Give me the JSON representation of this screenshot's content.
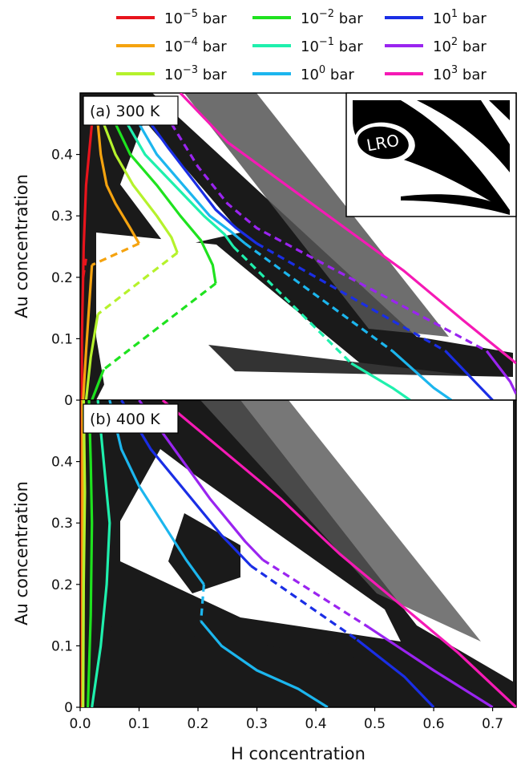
{
  "chart_data": {
    "type": "line",
    "xlabel": "H concentration",
    "ylabel": "Au concentration",
    "xlim": [
      0.0,
      0.74
    ],
    "ylim": [
      0.0,
      0.5
    ],
    "x_ticks": [
      "0.0",
      "0.1",
      "0.2",
      "0.3",
      "0.4",
      "0.5",
      "0.6",
      "0.7"
    ],
    "y_ticks": [
      "0",
      "0.1",
      "0.2",
      "0.3",
      "0.4"
    ],
    "legend": [
      {
        "base": "10",
        "exp": "−5",
        "unit": " bar",
        "color": "#e8141c"
      },
      {
        "base": "10",
        "exp": "−4",
        "unit": " bar",
        "color": "#f5a30f"
      },
      {
        "base": "10",
        "exp": "−3",
        "unit": " bar",
        "color": "#b5f22c"
      },
      {
        "base": "10",
        "exp": "−2",
        "unit": " bar",
        "color": "#1fe21f"
      },
      {
        "base": "10",
        "exp": "−1",
        "unit": " bar",
        "color": "#1ff0ad"
      },
      {
        "base": "10",
        "exp": "0",
        "unit": " bar",
        "color": "#1cb6ee"
      },
      {
        "base": "10",
        "exp": "1",
        "unit": " bar",
        "color": "#1a2ee5"
      },
      {
        "base": "10",
        "exp": "2",
        "unit": " bar",
        "color": "#9a24f0"
      },
      {
        "base": "10",
        "exp": "3",
        "unit": " bar",
        "color": "#f51ab5"
      }
    ],
    "panels": [
      {
        "label": "(a) 300 K",
        "inset_label": "LRO",
        "series": [
          {
            "color": "#e8141c",
            "solid": [
              [
                0.02,
                0.45
              ],
              [
                0.015,
                0.4
              ],
              [
                0.01,
                0.35
              ],
              [
                0.008,
                0.3
              ],
              [
                0.006,
                0.25
              ],
              [
                0.005,
                0.2
              ],
              [
                0.004,
                0.15
              ],
              [
                0.003,
                0.1
              ],
              [
                0.003,
                0.05
              ],
              [
                0.003,
                0.0
              ]
            ],
            "dashed": [
              [
                0.005,
                0.2
              ],
              [
                0.01,
                0.23
              ]
            ]
          },
          {
            "color": "#f5a30f",
            "solid": [
              [
                0.03,
                0.45
              ],
              [
                0.035,
                0.4
              ],
              [
                0.045,
                0.35
              ],
              [
                0.06,
                0.32
              ],
              [
                0.085,
                0.28
              ],
              [
                0.1,
                0.255
              ]
            ],
            "dashed": [
              [
                0.1,
                0.255
              ],
              [
                0.02,
                0.22
              ]
            ],
            "solid2": [
              [
                0.02,
                0.22
              ],
              [
                0.015,
                0.15
              ],
              [
                0.01,
                0.08
              ],
              [
                0.005,
                0.0
              ]
            ]
          },
          {
            "color": "#b5f22c",
            "solid": [
              [
                0.04,
                0.45
              ],
              [
                0.06,
                0.4
              ],
              [
                0.09,
                0.35
              ],
              [
                0.13,
                0.3
              ],
              [
                0.155,
                0.265
              ],
              [
                0.165,
                0.24
              ]
            ],
            "dashed": [
              [
                0.165,
                0.24
              ],
              [
                0.03,
                0.14
              ]
            ],
            "solid2": [
              [
                0.03,
                0.14
              ],
              [
                0.018,
                0.07
              ],
              [
                0.01,
                0.0
              ]
            ]
          },
          {
            "color": "#1fe21f",
            "solid": [
              [
                0.06,
                0.45
              ],
              [
                0.085,
                0.4
              ],
              [
                0.13,
                0.35
              ],
              [
                0.17,
                0.3
              ],
              [
                0.205,
                0.26
              ],
              [
                0.225,
                0.22
              ],
              [
                0.23,
                0.19
              ]
            ],
            "dashed": [
              [
                0.23,
                0.19
              ],
              [
                0.04,
                0.05
              ]
            ],
            "solid2": [
              [
                0.04,
                0.05
              ],
              [
                0.02,
                0.0
              ]
            ]
          },
          {
            "color": "#1ff0ad",
            "solid": [
              [
                0.08,
                0.45
              ],
              [
                0.11,
                0.4
              ],
              [
                0.16,
                0.35
              ],
              [
                0.21,
                0.3
              ],
              [
                0.245,
                0.27
              ],
              [
                0.26,
                0.25
              ]
            ],
            "dashed": [
              [
                0.26,
                0.25
              ],
              [
                0.46,
                0.06
              ]
            ],
            "solid2": [
              [
                0.46,
                0.06
              ],
              [
                0.53,
                0.02
              ],
              [
                0.56,
                0.0
              ]
            ]
          },
          {
            "color": "#1cb6ee",
            "solid": [
              [
                0.1,
                0.45
              ],
              [
                0.13,
                0.4
              ],
              [
                0.175,
                0.35
              ],
              [
                0.22,
                0.3
              ],
              [
                0.255,
                0.275
              ],
              [
                0.28,
                0.255
              ]
            ],
            "dashed": [
              [
                0.28,
                0.255
              ],
              [
                0.53,
                0.08
              ]
            ],
            "solid2": [
              [
                0.53,
                0.08
              ],
              [
                0.6,
                0.02
              ],
              [
                0.63,
                0.0
              ]
            ]
          },
          {
            "color": "#1a2ee5",
            "solid": [
              [
                0.12,
                0.45
              ],
              [
                0.15,
                0.41
              ],
              [
                0.19,
                0.36
              ],
              [
                0.23,
                0.31
              ],
              [
                0.265,
                0.28
              ],
              [
                0.3,
                0.255
              ]
            ],
            "dashed": [
              [
                0.3,
                0.255
              ],
              [
                0.62,
                0.08
              ]
            ],
            "solid2": [
              [
                0.62,
                0.08
              ],
              [
                0.68,
                0.02
              ],
              [
                0.7,
                0.0
              ]
            ]
          },
          {
            "color": "#9a24f0",
            "solid": [],
            "dashed": [
              [
                0.155,
                0.45
              ],
              [
                0.2,
                0.38
              ],
              [
                0.25,
                0.32
              ],
              [
                0.3,
                0.28
              ],
              [
                0.69,
                0.08
              ]
            ],
            "solid2": [
              [
                0.69,
                0.08
              ],
              [
                0.73,
                0.03
              ],
              [
                0.74,
                0.01
              ]
            ]
          },
          {
            "color": "#f51ab5",
            "solid": [
              [
                0.17,
                0.5
              ],
              [
                0.25,
                0.42
              ],
              [
                0.35,
                0.35
              ],
              [
                0.45,
                0.28
              ],
              [
                0.55,
                0.21
              ],
              [
                0.65,
                0.13
              ],
              [
                0.74,
                0.06
              ]
            ],
            "dashed": []
          }
        ]
      },
      {
        "label": "(b) 400 K",
        "series": [
          {
            "color": "#e8141c",
            "solid": [
              [
                0.003,
                0.5
              ],
              [
                0.003,
                0.0
              ]
            ],
            "dashed": []
          },
          {
            "color": "#f5a30f",
            "solid": [
              [
                0.004,
                0.5
              ],
              [
                0.004,
                0.0
              ]
            ],
            "dashed": []
          },
          {
            "color": "#b5f22c",
            "solid": [
              [
                0.006,
                0.5
              ],
              [
                0.008,
                0.35
              ],
              [
                0.006,
                0.2
              ],
              [
                0.005,
                0.0
              ]
            ],
            "dashed": []
          },
          {
            "color": "#1fe21f",
            "solid": [
              [
                0.015,
                0.5
              ],
              [
                0.018,
                0.4
              ],
              [
                0.02,
                0.3
              ],
              [
                0.018,
                0.15
              ],
              [
                0.013,
                0.0
              ]
            ],
            "dashed": []
          },
          {
            "color": "#1ff0ad",
            "solid": [
              [
                0.03,
                0.5
              ],
              [
                0.04,
                0.4
              ],
              [
                0.05,
                0.3
              ],
              [
                0.045,
                0.2
              ],
              [
                0.035,
                0.1
              ],
              [
                0.02,
                0.0
              ]
            ],
            "dashed": []
          },
          {
            "color": "#1cb6ee",
            "solid": [
              [
                0.05,
                0.5
              ],
              [
                0.07,
                0.42
              ],
              [
                0.1,
                0.36
              ],
              [
                0.14,
                0.3
              ],
              [
                0.18,
                0.24
              ],
              [
                0.21,
                0.2
              ]
            ],
            "dashed": [
              [
                0.21,
                0.2
              ],
              [
                0.205,
                0.14
              ]
            ],
            "solid2": [
              [
                0.205,
                0.14
              ],
              [
                0.24,
                0.1
              ],
              [
                0.3,
                0.06
              ],
              [
                0.37,
                0.03
              ],
              [
                0.42,
                0.0
              ]
            ]
          },
          {
            "color": "#1a2ee5",
            "solid": [
              [
                0.07,
                0.5
              ],
              [
                0.12,
                0.42
              ],
              [
                0.18,
                0.35
              ],
              [
                0.24,
                0.28
              ],
              [
                0.29,
                0.23
              ]
            ],
            "dashed": [
              [
                0.29,
                0.23
              ],
              [
                0.47,
                0.11
              ]
            ],
            "solid2": [
              [
                0.47,
                0.11
              ],
              [
                0.55,
                0.05
              ],
              [
                0.6,
                0.0
              ]
            ]
          },
          {
            "color": "#9a24f0",
            "solid": [
              [
                0.1,
                0.5
              ],
              [
                0.16,
                0.42
              ],
              [
                0.22,
                0.34
              ],
              [
                0.28,
                0.27
              ],
              [
                0.31,
                0.24
              ]
            ],
            "dashed": [
              [
                0.31,
                0.24
              ],
              [
                0.49,
                0.13
              ]
            ],
            "solid2": [
              [
                0.49,
                0.13
              ],
              [
                0.6,
                0.06
              ],
              [
                0.7,
                0.0
              ]
            ]
          },
          {
            "color": "#f51ab5",
            "solid": [
              [
                0.14,
                0.5
              ],
              [
                0.24,
                0.42
              ],
              [
                0.34,
                0.34
              ],
              [
                0.44,
                0.25
              ],
              [
                0.54,
                0.17
              ],
              [
                0.64,
                0.09
              ],
              [
                0.74,
                0.0
              ]
            ],
            "dashed": []
          }
        ]
      }
    ]
  }
}
